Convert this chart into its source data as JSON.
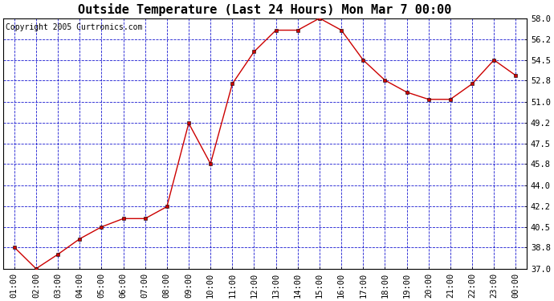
{
  "title": "Outside Temperature (Last 24 Hours) Mon Mar 7 00:00",
  "copyright": "Copyright 2005 Curtronics.com",
  "x_labels": [
    "01:00",
    "02:00",
    "03:00",
    "04:00",
    "05:00",
    "06:00",
    "07:00",
    "08:00",
    "09:00",
    "10:00",
    "11:00",
    "12:00",
    "13:00",
    "14:00",
    "15:00",
    "16:00",
    "17:00",
    "18:00",
    "19:00",
    "20:00",
    "21:00",
    "22:00",
    "23:00",
    "00:00"
  ],
  "y_values": [
    38.8,
    37.0,
    38.2,
    39.5,
    40.5,
    41.2,
    41.2,
    42.2,
    49.2,
    45.8,
    52.5,
    55.2,
    57.0,
    57.0,
    58.0,
    57.0,
    54.5,
    52.8,
    51.8,
    51.2,
    51.2,
    52.5,
    54.5,
    53.2
  ],
  "ylim": [
    37.0,
    58.0
  ],
  "yticks": [
    37.0,
    38.8,
    40.5,
    42.2,
    44.0,
    45.8,
    47.5,
    49.2,
    51.0,
    52.8,
    54.5,
    56.2,
    58.0
  ],
  "line_color": "#cc0000",
  "marker_color": "#000000",
  "bg_color": "#ffffff",
  "plot_bg": "#ffffff",
  "grid_color": "#0000cc",
  "title_fontsize": 11,
  "tick_fontsize": 7.5,
  "copyright_fontsize": 7
}
